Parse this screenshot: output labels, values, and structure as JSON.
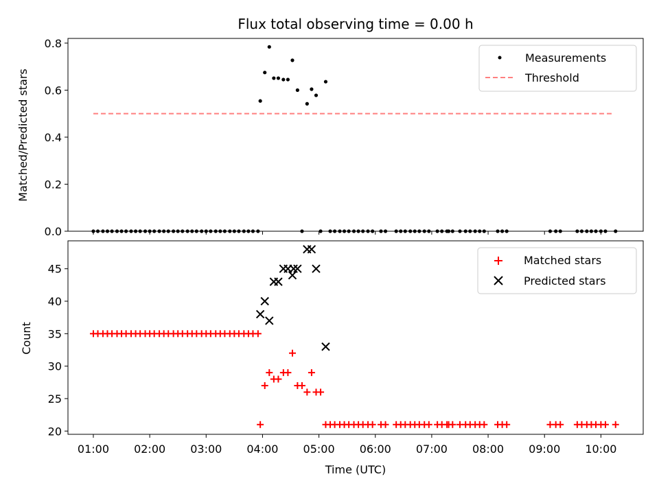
{
  "chart_data": {
    "type": "scatter",
    "title": "Flux total observing time = 0.00 h",
    "xlabel": "Time (UTC)",
    "x_unit": "hours UTC",
    "x_range": [
      0.55,
      10.75
    ],
    "x_ticks": [
      1,
      2,
      3,
      4,
      5,
      6,
      7,
      8,
      9,
      10
    ],
    "x_tick_labels": [
      "01:00",
      "02:00",
      "03:00",
      "04:00",
      "05:00",
      "06:00",
      "07:00",
      "08:00",
      "09:00",
      "10:00"
    ],
    "panels": [
      {
        "id": "ratio",
        "ylabel": "Matched/Predicted stars",
        "ylim": [
          0.0,
          0.82
        ],
        "y_ticks": [
          0.0,
          0.2,
          0.4,
          0.6,
          0.8
        ],
        "y_tick_labels": [
          "0.0",
          "0.2",
          "0.4",
          "0.6",
          "0.8"
        ],
        "legend_position": "top-right",
        "series": [
          {
            "name": "Measurements",
            "kind": "scatter",
            "marker": "dot",
            "color": "#000000",
            "points": [
              [
                1.0,
                0
              ],
              [
                1.08,
                0
              ],
              [
                1.17,
                0
              ],
              [
                1.25,
                0
              ],
              [
                1.33,
                0
              ],
              [
                1.42,
                0
              ],
              [
                1.5,
                0
              ],
              [
                1.58,
                0
              ],
              [
                1.67,
                0
              ],
              [
                1.75,
                0
              ],
              [
                1.83,
                0
              ],
              [
                1.92,
                0
              ],
              [
                2.0,
                0
              ],
              [
                2.08,
                0
              ],
              [
                2.17,
                0
              ],
              [
                2.25,
                0
              ],
              [
                2.33,
                0
              ],
              [
                2.42,
                0
              ],
              [
                2.5,
                0
              ],
              [
                2.58,
                0
              ],
              [
                2.67,
                0
              ],
              [
                2.75,
                0
              ],
              [
                2.83,
                0
              ],
              [
                2.92,
                0
              ],
              [
                3.0,
                0
              ],
              [
                3.08,
                0
              ],
              [
                3.17,
                0
              ],
              [
                3.25,
                0
              ],
              [
                3.33,
                0
              ],
              [
                3.42,
                0
              ],
              [
                3.5,
                0
              ],
              [
                3.58,
                0
              ],
              [
                3.67,
                0
              ],
              [
                3.75,
                0
              ],
              [
                3.83,
                0
              ],
              [
                3.92,
                0
              ],
              [
                3.96,
                0.554
              ],
              [
                4.04,
                0.675
              ],
              [
                4.12,
                0.784
              ],
              [
                4.2,
                0.651
              ],
              [
                4.28,
                0.651
              ],
              [
                4.37,
                0.645
              ],
              [
                4.45,
                0.645
              ],
              [
                4.53,
                0.727
              ],
              [
                4.62,
                0.6
              ],
              [
                4.7,
                0.0
              ],
              [
                4.79,
                0.542
              ],
              [
                4.87,
                0.604
              ],
              [
                4.95,
                0.578
              ],
              [
                5.03,
                0.0
              ],
              [
                5.12,
                0.636
              ],
              [
                5.2,
                0
              ],
              [
                5.28,
                0
              ],
              [
                5.37,
                0
              ],
              [
                5.45,
                0
              ],
              [
                5.53,
                0
              ],
              [
                5.62,
                0
              ],
              [
                5.7,
                0
              ],
              [
                5.78,
                0
              ],
              [
                5.87,
                0
              ],
              [
                5.95,
                0
              ],
              [
                6.1,
                0
              ],
              [
                6.18,
                0
              ],
              [
                6.37,
                0
              ],
              [
                6.45,
                0
              ],
              [
                6.53,
                0
              ],
              [
                6.62,
                0
              ],
              [
                6.7,
                0
              ],
              [
                6.78,
                0
              ],
              [
                6.87,
                0
              ],
              [
                6.95,
                0
              ],
              [
                7.1,
                0
              ],
              [
                7.18,
                0
              ],
              [
                7.27,
                0
              ],
              [
                7.3,
                0
              ],
              [
                7.37,
                0
              ],
              [
                7.5,
                0
              ],
              [
                7.6,
                0
              ],
              [
                7.68,
                0
              ],
              [
                7.77,
                0
              ],
              [
                7.85,
                0
              ],
              [
                7.93,
                0
              ],
              [
                8.17,
                0
              ],
              [
                8.25,
                0
              ],
              [
                8.33,
                0
              ],
              [
                9.1,
                0
              ],
              [
                9.2,
                0
              ],
              [
                9.28,
                0
              ],
              [
                9.58,
                0
              ],
              [
                9.66,
                0
              ],
              [
                9.75,
                0
              ],
              [
                9.83,
                0
              ],
              [
                9.91,
                0
              ],
              [
                10.0,
                0
              ],
              [
                10.08,
                0
              ],
              [
                10.26,
                0
              ]
            ]
          },
          {
            "name": "Threshold",
            "kind": "line",
            "line_style": "dashed",
            "color": "#ff7f7f",
            "x": [
              1.0,
              10.2
            ],
            "y": [
              0.5,
              0.5
            ]
          }
        ]
      },
      {
        "id": "counts",
        "ylabel": "Count",
        "ylim": [
          19.5,
          49.3
        ],
        "y_ticks": [
          20,
          25,
          30,
          35,
          40,
          45
        ],
        "y_tick_labels": [
          "20",
          "25",
          "30",
          "35",
          "40",
          "45"
        ],
        "legend_position": "top-right",
        "series": [
          {
            "name": "Matched stars",
            "kind": "scatter",
            "marker": "plus",
            "color": "#ff0000",
            "points": [
              [
                1.0,
                35
              ],
              [
                1.08,
                35
              ],
              [
                1.17,
                35
              ],
              [
                1.25,
                35
              ],
              [
                1.33,
                35
              ],
              [
                1.42,
                35
              ],
              [
                1.5,
                35
              ],
              [
                1.58,
                35
              ],
              [
                1.67,
                35
              ],
              [
                1.75,
                35
              ],
              [
                1.83,
                35
              ],
              [
                1.92,
                35
              ],
              [
                2.0,
                35
              ],
              [
                2.08,
                35
              ],
              [
                2.17,
                35
              ],
              [
                2.25,
                35
              ],
              [
                2.33,
                35
              ],
              [
                2.42,
                35
              ],
              [
                2.5,
                35
              ],
              [
                2.58,
                35
              ],
              [
                2.67,
                35
              ],
              [
                2.75,
                35
              ],
              [
                2.83,
                35
              ],
              [
                2.92,
                35
              ],
              [
                3.0,
                35
              ],
              [
                3.08,
                35
              ],
              [
                3.17,
                35
              ],
              [
                3.25,
                35
              ],
              [
                3.33,
                35
              ],
              [
                3.42,
                35
              ],
              [
                3.5,
                35
              ],
              [
                3.58,
                35
              ],
              [
                3.67,
                35
              ],
              [
                3.75,
                35
              ],
              [
                3.83,
                35
              ],
              [
                3.92,
                35
              ],
              [
                3.96,
                21
              ],
              [
                4.04,
                27
              ],
              [
                4.12,
                29
              ],
              [
                4.2,
                28
              ],
              [
                4.28,
                28
              ],
              [
                4.37,
                29
              ],
              [
                4.45,
                29
              ],
              [
                4.53,
                32
              ],
              [
                4.62,
                27
              ],
              [
                4.7,
                27
              ],
              [
                4.79,
                26
              ],
              [
                4.87,
                29
              ],
              [
                4.95,
                26
              ],
              [
                5.03,
                26
              ],
              [
                5.12,
                21
              ],
              [
                5.2,
                21
              ],
              [
                5.28,
                21
              ],
              [
                5.37,
                21
              ],
              [
                5.45,
                21
              ],
              [
                5.53,
                21
              ],
              [
                5.62,
                21
              ],
              [
                5.7,
                21
              ],
              [
                5.78,
                21
              ],
              [
                5.87,
                21
              ],
              [
                5.95,
                21
              ],
              [
                6.1,
                21
              ],
              [
                6.18,
                21
              ],
              [
                6.37,
                21
              ],
              [
                6.45,
                21
              ],
              [
                6.53,
                21
              ],
              [
                6.62,
                21
              ],
              [
                6.7,
                21
              ],
              [
                6.78,
                21
              ],
              [
                6.87,
                21
              ],
              [
                6.95,
                21
              ],
              [
                7.1,
                21
              ],
              [
                7.18,
                21
              ],
              [
                7.27,
                21
              ],
              [
                7.3,
                21
              ],
              [
                7.37,
                21
              ],
              [
                7.5,
                21
              ],
              [
                7.6,
                21
              ],
              [
                7.68,
                21
              ],
              [
                7.77,
                21
              ],
              [
                7.85,
                21
              ],
              [
                7.93,
                21
              ],
              [
                8.17,
                21
              ],
              [
                8.25,
                21
              ],
              [
                8.33,
                21
              ],
              [
                9.1,
                21
              ],
              [
                9.2,
                21
              ],
              [
                9.28,
                21
              ],
              [
                9.58,
                21
              ],
              [
                9.66,
                21
              ],
              [
                9.75,
                21
              ],
              [
                9.83,
                21
              ],
              [
                9.91,
                21
              ],
              [
                10.0,
                21
              ],
              [
                10.08,
                21
              ],
              [
                10.26,
                21
              ]
            ]
          },
          {
            "name": "Predicted stars",
            "kind": "scatter",
            "marker": "x",
            "color": "#000000",
            "points": [
              [
                3.96,
                38
              ],
              [
                4.04,
                40
              ],
              [
                4.12,
                37
              ],
              [
                4.2,
                43
              ],
              [
                4.28,
                43
              ],
              [
                4.37,
                45
              ],
              [
                4.45,
                45
              ],
              [
                4.53,
                44
              ],
              [
                4.55,
                45
              ],
              [
                4.62,
                45
              ],
              [
                4.79,
                48
              ],
              [
                4.87,
                48
              ],
              [
                4.95,
                45
              ],
              [
                5.12,
                33
              ]
            ]
          }
        ]
      }
    ]
  }
}
